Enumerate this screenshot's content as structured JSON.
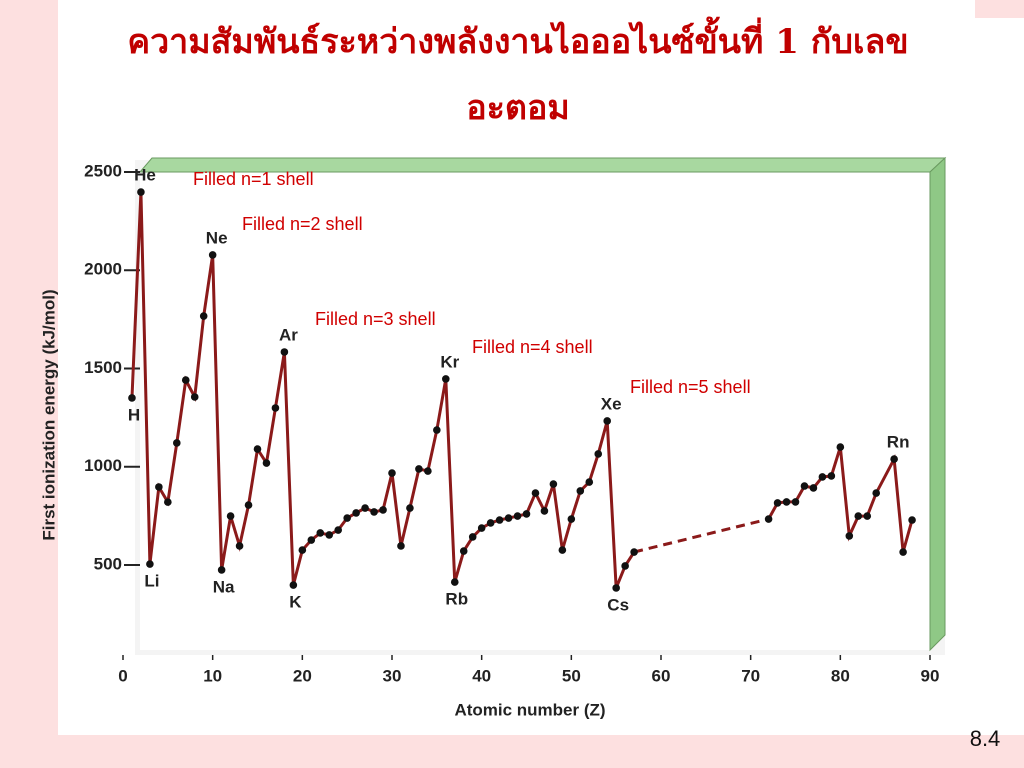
{
  "title_lines": [
    "ความสัมพันธ์ระหว่างพลังงานไอออไนซ์ขั้นที่ 1 กับเลข",
    "อะตอม"
  ],
  "slide_number": "8.4",
  "chart_data": {
    "type": "line",
    "x_label": "Atomic number (Z)",
    "y_label": "First ionization energy (kJ/mol)",
    "x": [
      1,
      2,
      3,
      4,
      5,
      6,
      7,
      8,
      9,
      10,
      11,
      12,
      13,
      14,
      15,
      16,
      17,
      18,
      19,
      20,
      21,
      22,
      23,
      24,
      25,
      26,
      27,
      28,
      29,
      30,
      31,
      32,
      33,
      34,
      35,
      36,
      37,
      38,
      39,
      40,
      41,
      42,
      43,
      44,
      45,
      46,
      47,
      48,
      49,
      50,
      51,
      52,
      53,
      54,
      55,
      56,
      57,
      72,
      73,
      74,
      75,
      76,
      77,
      78,
      79,
      80,
      81,
      82,
      83,
      84,
      86,
      87,
      88
    ],
    "values": [
      1350,
      2398,
      505,
      897,
      820,
      1121,
      1441,
      1355,
      1767,
      2078,
      475,
      749,
      597,
      805,
      1090,
      1019,
      1299,
      1584,
      398,
      576,
      627,
      663,
      653,
      678,
      739,
      765,
      790,
      770,
      780,
      968,
      597,
      790,
      989,
      978,
      1187,
      1447,
      413,
      571,
      643,
      688,
      714,
      729,
      739,
      749,
      760,
      866,
      775,
      912,
      576,
      734,
      877,
      922,
      1065,
      1233,
      383,
      495,
      566,
      734,
      816,
      821,
      821,
      902,
      892,
      948,
      953,
      1100,
      648,
      749,
      749,
      866,
      1039,
      566,
      729
    ],
    "point_labels": [
      "H",
      "He",
      "Li",
      null,
      null,
      null,
      null,
      null,
      null,
      "Ne",
      "Na",
      null,
      null,
      null,
      null,
      null,
      null,
      "Ar",
      "K",
      null,
      null,
      null,
      null,
      null,
      null,
      null,
      null,
      null,
      null,
      null,
      null,
      null,
      null,
      null,
      null,
      "Kr",
      "Rb",
      null,
      null,
      null,
      null,
      null,
      null,
      null,
      null,
      null,
      null,
      null,
      null,
      null,
      null,
      null,
      null,
      "Xe",
      "Cs",
      null,
      null,
      null,
      null,
      null,
      null,
      null,
      null,
      null,
      null,
      null,
      null,
      null,
      null,
      null,
      "Rn",
      null,
      null
    ],
    "annotations": [
      "Filled n=1 shell",
      "Filled n=2 shell",
      "Filled n=3 shell",
      "Filled n=4 shell",
      "Filled n=5 shell"
    ],
    "color": "#8b1a1a",
    "xlim": [
      0,
      90
    ],
    "xticks": [
      0,
      10,
      20,
      30,
      40,
      50,
      60,
      70,
      80,
      90
    ],
    "ylim": [
      100,
      2500
    ],
    "yticks": [
      500,
      1000,
      1500,
      2000,
      2500
    ]
  }
}
